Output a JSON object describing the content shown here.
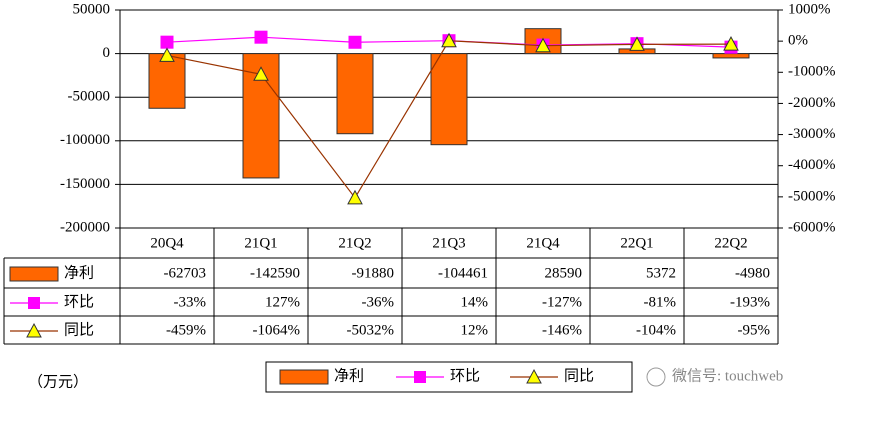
{
  "chart_data": {
    "type": "bar-line",
    "categories": [
      "20Q4",
      "21Q1",
      "21Q2",
      "21Q3",
      "21Q4",
      "22Q1",
      "22Q2"
    ],
    "series": [
      {
        "name": "净利",
        "type": "bar",
        "color": "#ff6600",
        "values": [
          -62703,
          -142590,
          -91880,
          -104461,
          28590,
          5372,
          -4980
        ]
      },
      {
        "name": "环比",
        "type": "line",
        "axis": "y2",
        "color": "#ff00ff",
        "marker": "square",
        "values": [
          -33,
          127,
          -36,
          14,
          -127,
          -81,
          -193
        ],
        "value_labels": [
          "-33%",
          "127%",
          "-36%",
          "14%",
          "-127%",
          "-81%",
          "-193%"
        ]
      },
      {
        "name": "同比",
        "type": "line",
        "axis": "y2",
        "color": "#993300",
        "marker": "triangle",
        "values": [
          -459,
          -1064,
          -5032,
          12,
          -146,
          -104,
          -95
        ],
        "value_labels": [
          "-459%",
          "-1064%",
          "-5032%",
          "12%",
          "-146%",
          "-104%",
          "-95%"
        ]
      }
    ],
    "ylim": [
      -200000,
      50000
    ],
    "yticks": [
      50000,
      0,
      -50000,
      -100000,
      -150000,
      -200000
    ],
    "y2lim": [
      -6000,
      1000
    ],
    "y2ticks": [
      {
        "value": 1000,
        "label": "1000%"
      },
      {
        "value": 0,
        "label": "0%"
      },
      {
        "value": -1000,
        "label": "-1000%"
      },
      {
        "value": -2000,
        "label": "-2000%"
      },
      {
        "value": -3000,
        "label": "-3000%"
      },
      {
        "value": -4000,
        "label": "-4000%"
      },
      {
        "value": -5000,
        "label": "-5000%"
      },
      {
        "value": -6000,
        "label": "-6000%"
      }
    ],
    "grid": true,
    "y_label": "（万元）",
    "watermark": "微信号: touchweb"
  }
}
